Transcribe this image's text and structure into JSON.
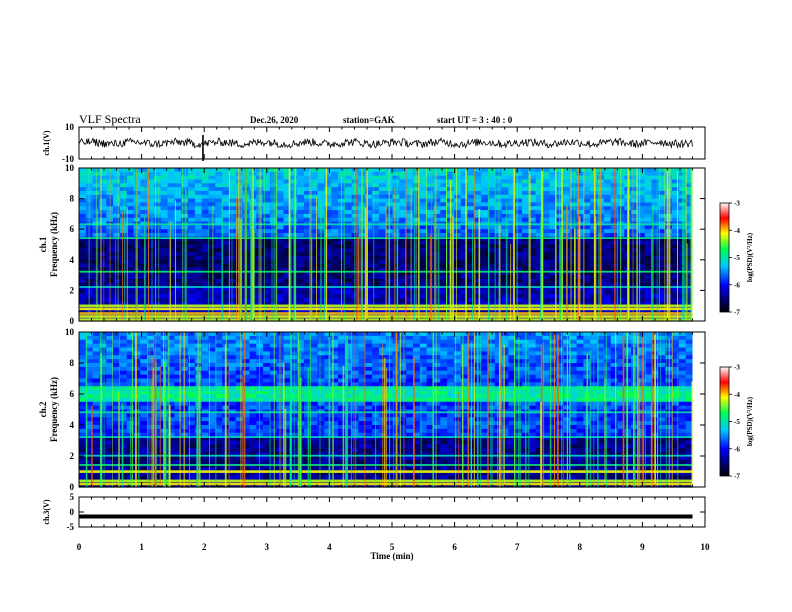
{
  "header": {
    "title": "VLF Spectra",
    "date": "Dec.26, 2020",
    "station": "station=GAK",
    "start": "start UT =  3 : 40 : 0"
  },
  "chart_data": [
    {
      "type": "line",
      "panel": "ch1-waveform",
      "ylabel": "ch.1(V)",
      "ylim": [
        -10,
        10
      ],
      "yticks": [
        "10",
        "-10"
      ],
      "x_range_min": [
        0,
        9.8
      ],
      "baseline": 0,
      "amplitude_range": [
        -2.5,
        2.5
      ],
      "spike_at_min": 1.98
    },
    {
      "type": "heatmap",
      "panel": "ch1-spectrogram",
      "ylabel": "ch.1\nFrequency (kHz)",
      "ylabel_line1": "ch.1",
      "ylabel_line2": "Frequency (kHz)",
      "ylim": [
        0,
        10
      ],
      "yticks": [
        "0",
        "2",
        "4",
        "6",
        "8",
        "10"
      ],
      "bands_khz": [
        0.1,
        0.3,
        0.5,
        0.8,
        1.0,
        2.2,
        3.2,
        5.4,
        6.3
      ],
      "colorbar": {
        "label": "log(PSD)(V²/Hz)",
        "range": [
          -7,
          -3
        ],
        "ticks": [
          "-3",
          "-4",
          "-5",
          "-6",
          "-7"
        ]
      }
    },
    {
      "type": "heatmap",
      "panel": "ch2-spectrogram",
      "ylabel": "ch.2\nFrequency (kHz)",
      "ylabel_line1": "ch.2",
      "ylabel_line2": "Frequency (kHz)",
      "ylim": [
        0,
        10
      ],
      "yticks": [
        "0",
        "2",
        "4",
        "6",
        "8",
        "10"
      ],
      "bands_khz": [
        0.2,
        0.4,
        1.0,
        1.4,
        2.0,
        3.2,
        4.8,
        6.2
      ],
      "colorbar": {
        "label": "log(PSD)(V²/Hz)",
        "range": [
          -7,
          -3
        ],
        "ticks": [
          "-3",
          "-4",
          "-5",
          "-6",
          "-7"
        ]
      }
    },
    {
      "type": "line",
      "panel": "ch3-waveform",
      "ylabel": "ch.3(V)",
      "ylim": [
        -5,
        5
      ],
      "yticks": [
        "5",
        "0",
        "-5"
      ],
      "level": -1.5,
      "x_range_min": [
        0,
        9.8
      ]
    }
  ],
  "xaxis": {
    "label": "Time (min)",
    "xlim": [
      0,
      10
    ],
    "ticks": [
      "0",
      "1",
      "2",
      "3",
      "4",
      "5",
      "6",
      "7",
      "8",
      "9",
      "10"
    ]
  }
}
